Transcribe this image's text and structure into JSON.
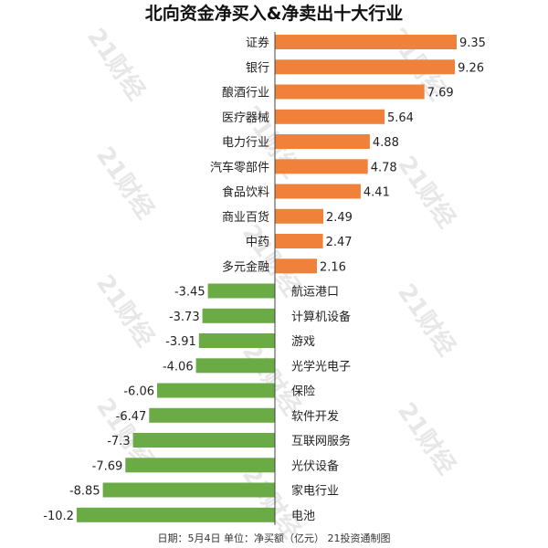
{
  "colors": {
    "positive": "#f0813a",
    "negative": "#6aab45",
    "axis": "#444444",
    "watermark": "#e2e2e2"
  },
  "watermark_text": "21财经",
  "footer": "日期：5月4日  单位：净买额（亿元） 21投资通制图",
  "chart_data": {
    "type": "bar",
    "orientation": "horizontal",
    "title": "北向资金净买入&净卖出十大行业",
    "unit": "亿元",
    "categories": [
      "证券",
      "银行",
      "酿酒行业",
      "医疗器械",
      "电力行业",
      "汽车零部件",
      "食品饮料",
      "商业百货",
      "中药",
      "多元金融",
      "航运港口",
      "计算机设备",
      "游戏",
      "光学光电子",
      "保险",
      "软件开发",
      "互联网服务",
      "光伏设备",
      "家电行业",
      "电池"
    ],
    "values": [
      9.35,
      9.26,
      7.69,
      5.64,
      4.88,
      4.78,
      4.41,
      2.49,
      2.47,
      2.16,
      -3.45,
      -3.73,
      -3.91,
      -4.06,
      -6.06,
      -6.47,
      -7.3,
      -7.69,
      -8.85,
      -10.2
    ],
    "labels": [
      "9.35",
      "9.26",
      "7.69",
      "5.64",
      "4.88",
      "4.78",
      "4.41",
      "2.49",
      "2.47",
      "2.16",
      "-3.45",
      "-3.73",
      "-3.91",
      "-4.06",
      "-6.06",
      "-6.47",
      "-7.3",
      "-7.69",
      "-8.85",
      "-10.2"
    ],
    "xlim": [
      -10.2,
      9.35
    ],
    "grid": false,
    "legend": "none"
  }
}
